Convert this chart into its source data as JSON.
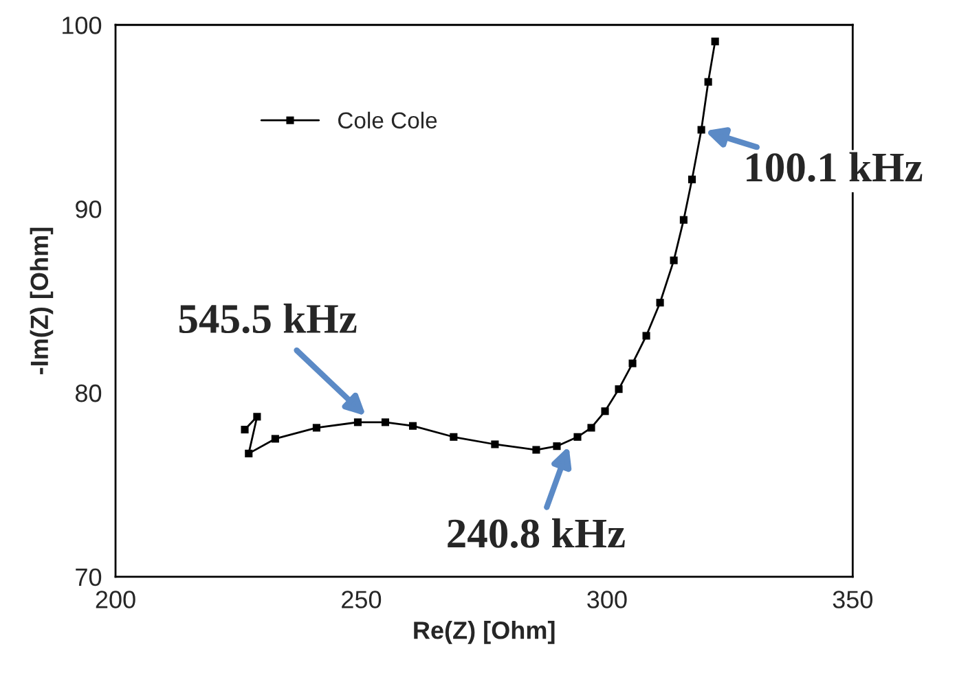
{
  "chart_data": {
    "type": "line",
    "xlabel": "Re(Z) [Ohm]",
    "ylabel": "-Im(Z) [Ohm]",
    "xlim": [
      200,
      350
    ],
    "xticks": [
      200,
      250,
      300,
      350
    ],
    "ylim": [
      70,
      100
    ],
    "yticks": [
      70,
      80,
      90,
      100
    ],
    "grid": false,
    "legend": "top left",
    "marker": "square",
    "line_style": "solid",
    "series": [
      {
        "name": "Cole Cole",
        "color": "#000000",
        "x": [
          226.3,
          228.8,
          227.1,
          232.5,
          240.9,
          249.3,
          254.9,
          260.5,
          268.8,
          277.2,
          285.6,
          289.8,
          294.0,
          296.8,
          299.6,
          302.4,
          305.2,
          308.0,
          310.8,
          313.6,
          315.6,
          317.3,
          319.2,
          320.6,
          322.0
        ],
        "values": [
          78.0,
          78.7,
          76.7,
          77.5,
          78.1,
          78.4,
          78.4,
          78.2,
          77.6,
          77.2,
          76.9,
          77.1,
          77.6,
          78.1,
          79.0,
          80.2,
          81.6,
          83.1,
          84.9,
          87.2,
          89.4,
          91.6,
          94.3,
          96.9,
          99.1
        ]
      }
    ],
    "annotations": [
      {
        "text": "545.5 kHz",
        "x": 251.5,
        "y": 78.6
      },
      {
        "text": "240.8 kHz",
        "x": 292.5,
        "y": 77.3
      },
      {
        "text": "100.1 kHz",
        "x": 319.2,
        "y": 94.3
      }
    ]
  }
}
